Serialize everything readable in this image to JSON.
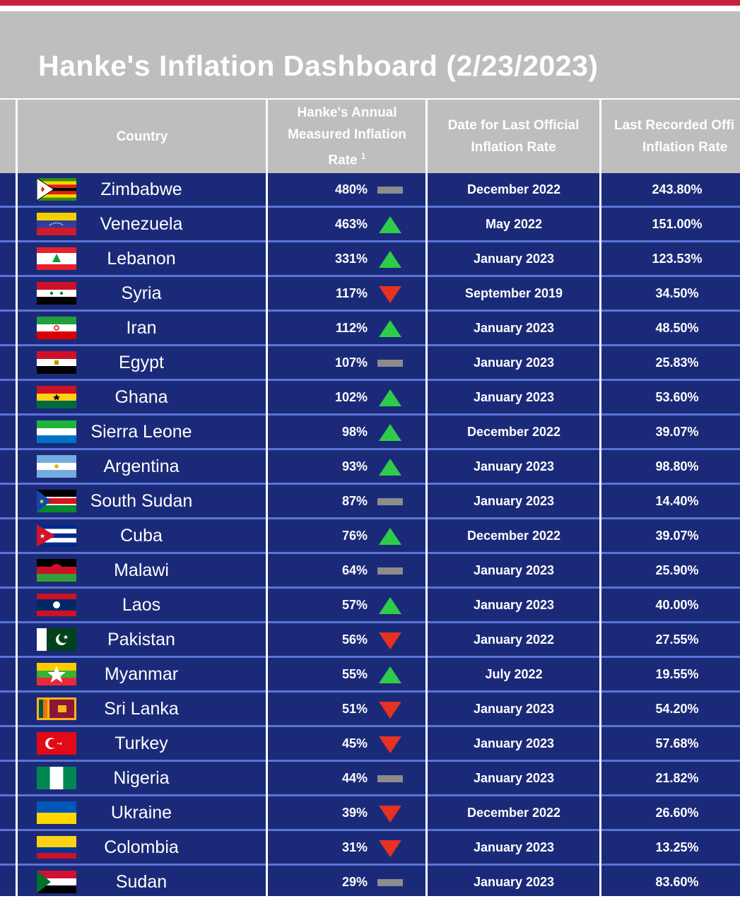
{
  "title": "Hanke's Inflation Dashboard (2/23/2023)",
  "colors": {
    "accent_bar": "#c8213f",
    "header_bg": "#bebebe",
    "row_bg": "#1b2a78",
    "row_divider": "#5a74d6",
    "trend_up": "#2ecc4a",
    "trend_down": "#e53221",
    "trend_flat": "#8c8c8c"
  },
  "columns": {
    "country": "Country",
    "hanke_rate_line1": "Hanke's Annual",
    "hanke_rate_line2": "Measured Inflation",
    "hanke_rate_line3": "Rate",
    "hanke_rate_footnote": "1",
    "date_line1": "Date for Last Official",
    "date_line2": "Inflation Rate",
    "last_line1": "Last Recorded Offi",
    "last_line2": "Inflation Rate"
  },
  "chart_data": {
    "type": "table",
    "title": "Hanke's Inflation Dashboard (2/23/2023)",
    "columns": [
      "Country",
      "Hanke's Annual Measured Inflation Rate",
      "Date for Last Official Inflation Rate",
      "Last Recorded Official Inflation Rate"
    ],
    "rows": [
      {
        "flag": "zimbabwe-flag",
        "country": "Zimbabwe",
        "rate": "480%",
        "rate_value": 480,
        "trend": "flat",
        "date": "December 2022",
        "last": "243.80%"
      },
      {
        "flag": "venezuela-flag",
        "country": "Venezuela",
        "rate": "463%",
        "rate_value": 463,
        "trend": "up",
        "date": "May 2022",
        "last": "151.00%"
      },
      {
        "flag": "lebanon-flag",
        "country": "Lebanon",
        "rate": "331%",
        "rate_value": 331,
        "trend": "up",
        "date": "January 2023",
        "last": "123.53%"
      },
      {
        "flag": "syria-flag",
        "country": "Syria",
        "rate": "117%",
        "rate_value": 117,
        "trend": "down",
        "date": "September 2019",
        "last": "34.50%"
      },
      {
        "flag": "iran-flag",
        "country": "Iran",
        "rate": "112%",
        "rate_value": 112,
        "trend": "up",
        "date": "January 2023",
        "last": "48.50%"
      },
      {
        "flag": "egypt-flag",
        "country": "Egypt",
        "rate": "107%",
        "rate_value": 107,
        "trend": "flat",
        "date": "January 2023",
        "last": "25.83%"
      },
      {
        "flag": "ghana-flag",
        "country": "Ghana",
        "rate": "102%",
        "rate_value": 102,
        "trend": "up",
        "date": "January 2023",
        "last": "53.60%"
      },
      {
        "flag": "sierra-leone-flag",
        "country": "Sierra Leone",
        "rate": "98%",
        "rate_value": 98,
        "trend": "up",
        "date": "December 2022",
        "last": "39.07%"
      },
      {
        "flag": "argentina-flag",
        "country": "Argentina",
        "rate": "93%",
        "rate_value": 93,
        "trend": "up",
        "date": "January 2023",
        "last": "98.80%"
      },
      {
        "flag": "south-sudan-flag",
        "country": "South Sudan",
        "rate": "87%",
        "rate_value": 87,
        "trend": "flat",
        "date": "January 2023",
        "last": "14.40%"
      },
      {
        "flag": "cuba-flag",
        "country": "Cuba",
        "rate": "76%",
        "rate_value": 76,
        "trend": "up",
        "date": "December 2022",
        "last": "39.07%"
      },
      {
        "flag": "malawi-flag",
        "country": "Malawi",
        "rate": "64%",
        "rate_value": 64,
        "trend": "flat",
        "date": "January 2023",
        "last": "25.90%"
      },
      {
        "flag": "laos-flag",
        "country": "Laos",
        "rate": "57%",
        "rate_value": 57,
        "trend": "up",
        "date": "January 2023",
        "last": "40.00%"
      },
      {
        "flag": "pakistan-flag",
        "country": "Pakistan",
        "rate": "56%",
        "rate_value": 56,
        "trend": "down",
        "date": "January 2022",
        "last": "27.55%"
      },
      {
        "flag": "myanmar-flag",
        "country": "Myanmar",
        "rate": "55%",
        "rate_value": 55,
        "trend": "up",
        "date": "July 2022",
        "last": "19.55%"
      },
      {
        "flag": "sri-lanka-flag",
        "country": "Sri Lanka",
        "rate": "51%",
        "rate_value": 51,
        "trend": "down",
        "date": "January 2023",
        "last": "54.20%"
      },
      {
        "flag": "turkey-flag",
        "country": "Turkey",
        "rate": "45%",
        "rate_value": 45,
        "trend": "down",
        "date": "January 2023",
        "last": "57.68%"
      },
      {
        "flag": "nigeria-flag",
        "country": "Nigeria",
        "rate": "44%",
        "rate_value": 44,
        "trend": "flat",
        "date": "January 2023",
        "last": "21.82%"
      },
      {
        "flag": "ukraine-flag",
        "country": "Ukraine",
        "rate": "39%",
        "rate_value": 39,
        "trend": "down",
        "date": "December 2022",
        "last": "26.60%"
      },
      {
        "flag": "colombia-flag",
        "country": "Colombia",
        "rate": "31%",
        "rate_value": 31,
        "trend": "down",
        "date": "January 2023",
        "last": "13.25%"
      },
      {
        "flag": "sudan-flag",
        "country": "Sudan",
        "rate": "29%",
        "rate_value": 29,
        "trend": "flat",
        "date": "January 2023",
        "last": "83.60%"
      }
    ]
  }
}
